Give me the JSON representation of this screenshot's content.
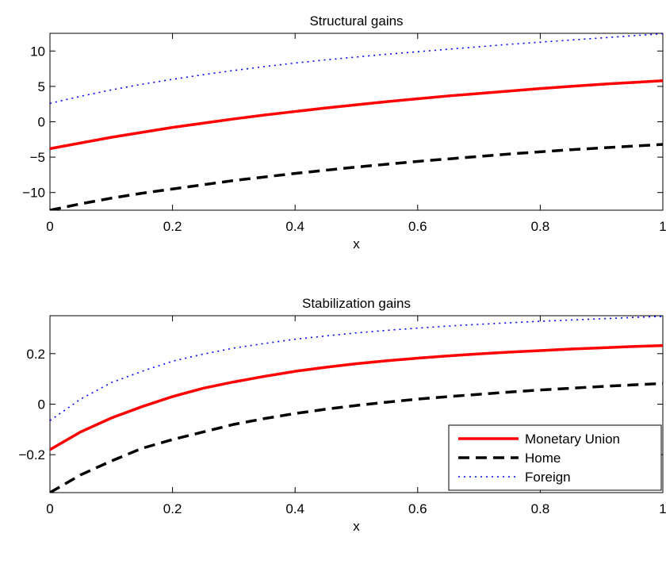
{
  "chart_data": [
    {
      "type": "line",
      "title": "Structural gains",
      "xlabel": "x",
      "ylabel": "",
      "xlim": [
        0,
        1
      ],
      "ylim": [
        -12.5,
        12.5
      ],
      "xticks": [
        0,
        0.2,
        0.4,
        0.6,
        0.8,
        1
      ],
      "xtick_labels": [
        "0",
        "0.2",
        "0.4",
        "0.6",
        "0.8",
        "1"
      ],
      "yticks": [
        -10,
        -5,
        0,
        5,
        10
      ],
      "ytick_labels": [
        "−10",
        "−5",
        "0",
        "5",
        "10"
      ],
      "grid": false,
      "x": [
        0,
        0.05,
        0.1,
        0.15,
        0.2,
        0.25,
        0.3,
        0.35,
        0.4,
        0.45,
        0.5,
        0.55,
        0.6,
        0.65,
        0.7,
        0.75,
        0.8,
        0.85,
        0.9,
        0.95,
        1
      ],
      "series": [
        {
          "key": "monetary-union",
          "color": "#ff0000",
          "dash": "solid",
          "values": [
            -3.8,
            -3.0,
            -2.2,
            -1.5,
            -0.8,
            -0.2,
            0.4,
            0.95,
            1.45,
            1.95,
            2.4,
            2.85,
            3.25,
            3.65,
            4.0,
            4.35,
            4.7,
            5.0,
            5.3,
            5.55,
            5.8
          ]
        },
        {
          "key": "home",
          "color": "#000000",
          "dash": "dashed",
          "values": [
            -12.5,
            -11.6,
            -10.8,
            -10.1,
            -9.5,
            -8.9,
            -8.3,
            -7.8,
            -7.3,
            -6.85,
            -6.4,
            -6.0,
            -5.6,
            -5.25,
            -4.9,
            -4.55,
            -4.25,
            -3.95,
            -3.7,
            -3.45,
            -3.2
          ]
        },
        {
          "key": "foreign",
          "color": "#0000ff",
          "dash": "dotted",
          "values": [
            2.6,
            3.6,
            4.5,
            5.3,
            6.0,
            6.65,
            7.25,
            7.8,
            8.3,
            8.75,
            9.15,
            9.55,
            9.9,
            10.25,
            10.6,
            10.95,
            11.25,
            11.55,
            11.85,
            12.15,
            12.45
          ]
        }
      ]
    },
    {
      "type": "line",
      "title": "Stabilization gains",
      "xlabel": "x",
      "ylabel": "",
      "xlim": [
        0,
        1
      ],
      "ylim": [
        -0.35,
        0.35
      ],
      "xticks": [
        0,
        0.2,
        0.4,
        0.6,
        0.8,
        1
      ],
      "xtick_labels": [
        "0",
        "0.2",
        "0.4",
        "0.6",
        "0.8",
        "1"
      ],
      "yticks": [
        -0.2,
        0,
        0.2
      ],
      "ytick_labels": [
        "−0.2",
        "0",
        "0.2"
      ],
      "grid": false,
      "legend_position": "bottom-right",
      "x": [
        0,
        0.05,
        0.1,
        0.15,
        0.2,
        0.25,
        0.3,
        0.35,
        0.4,
        0.45,
        0.5,
        0.55,
        0.6,
        0.65,
        0.7,
        0.75,
        0.8,
        0.85,
        0.9,
        0.95,
        1
      ],
      "series": [
        {
          "key": "monetary-union",
          "name": "Monetary Union",
          "color": "#ff0000",
          "dash": "solid",
          "values": [
            -0.18,
            -0.11,
            -0.055,
            -0.01,
            0.03,
            0.063,
            0.088,
            0.11,
            0.13,
            0.146,
            0.16,
            0.172,
            0.182,
            0.191,
            0.199,
            0.206,
            0.212,
            0.218,
            0.223,
            0.228,
            0.232
          ]
        },
        {
          "key": "home",
          "name": "Home",
          "color": "#000000",
          "dash": "dashed",
          "values": [
            -0.35,
            -0.28,
            -0.225,
            -0.175,
            -0.14,
            -0.11,
            -0.08,
            -0.057,
            -0.037,
            -0.02,
            -0.005,
            0.008,
            0.02,
            0.03,
            0.039,
            0.048,
            0.056,
            0.063,
            0.07,
            0.076,
            0.082
          ]
        },
        {
          "key": "foreign",
          "name": "Foreign",
          "color": "#0000ff",
          "dash": "dotted",
          "values": [
            -0.065,
            0.02,
            0.085,
            0.13,
            0.17,
            0.198,
            0.222,
            0.24,
            0.257,
            0.27,
            0.282,
            0.292,
            0.301,
            0.309,
            0.316,
            0.322,
            0.328,
            0.333,
            0.338,
            0.343,
            0.347
          ]
        }
      ]
    }
  ]
}
